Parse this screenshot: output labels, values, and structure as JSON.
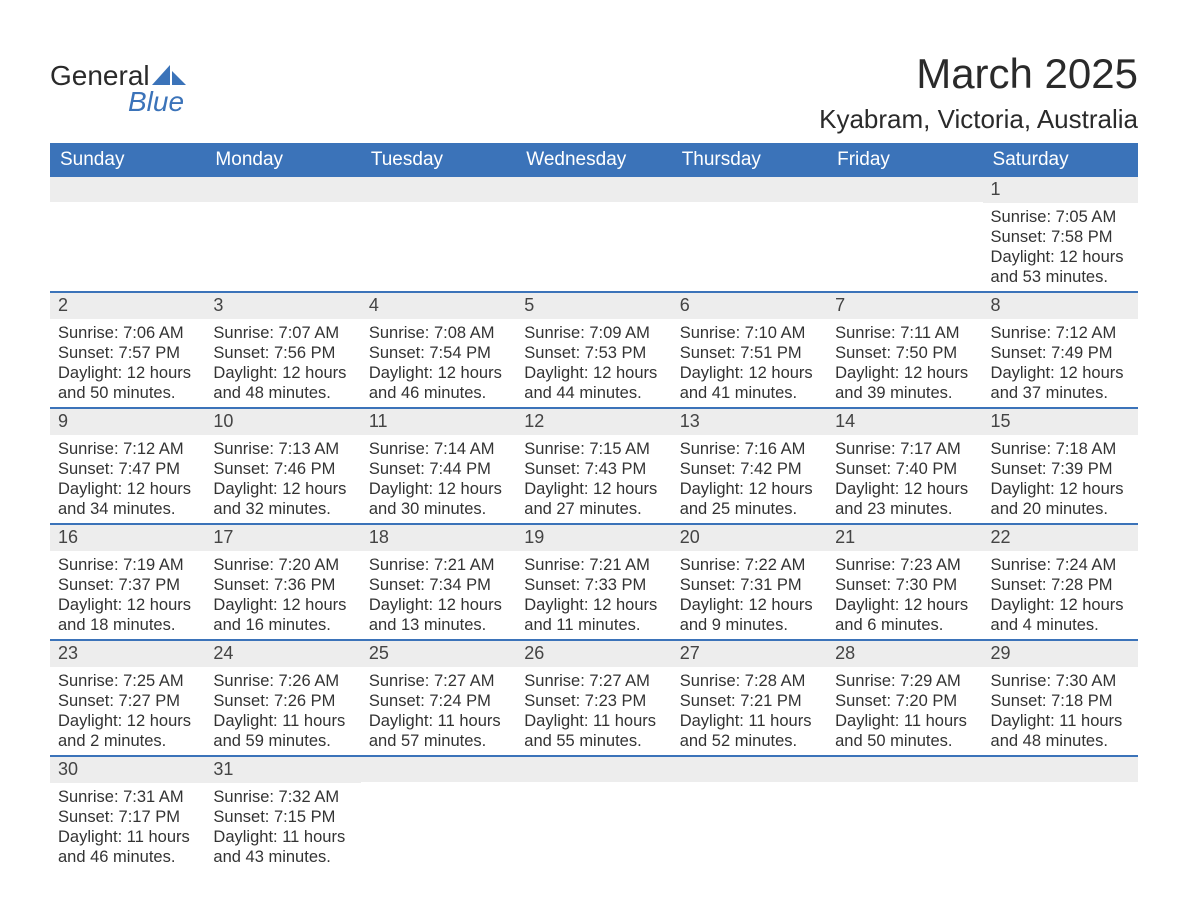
{
  "brand": {
    "name_part1": "General",
    "name_part2": "Blue",
    "color_primary": "#3b73b9",
    "color_text": "#2a2a2a"
  },
  "header": {
    "month_title": "March 2025",
    "location": "Kyabram, Victoria, Australia"
  },
  "calendar": {
    "type": "table",
    "background_color": "#ffffff",
    "header_bg": "#3b73b9",
    "header_text_color": "#ffffff",
    "row_divider_color": "#3b73b9",
    "daynum_bg": "#ededed",
    "text_color": "#333333",
    "body_fontsize": 16.5,
    "header_fontsize": 19,
    "title_fontsize": 42,
    "location_fontsize": 26,
    "columns": [
      "Sunday",
      "Monday",
      "Tuesday",
      "Wednesday",
      "Thursday",
      "Friday",
      "Saturday"
    ],
    "weeks": [
      [
        {
          "day": "",
          "sunrise": "",
          "sunset": "",
          "daylight": ""
        },
        {
          "day": "",
          "sunrise": "",
          "sunset": "",
          "daylight": ""
        },
        {
          "day": "",
          "sunrise": "",
          "sunset": "",
          "daylight": ""
        },
        {
          "day": "",
          "sunrise": "",
          "sunset": "",
          "daylight": ""
        },
        {
          "day": "",
          "sunrise": "",
          "sunset": "",
          "daylight": ""
        },
        {
          "day": "",
          "sunrise": "",
          "sunset": "",
          "daylight": ""
        },
        {
          "day": "1",
          "sunrise": "Sunrise: 7:05 AM",
          "sunset": "Sunset: 7:58 PM",
          "daylight": "Daylight: 12 hours and 53 minutes."
        }
      ],
      [
        {
          "day": "2",
          "sunrise": "Sunrise: 7:06 AM",
          "sunset": "Sunset: 7:57 PM",
          "daylight": "Daylight: 12 hours and 50 minutes."
        },
        {
          "day": "3",
          "sunrise": "Sunrise: 7:07 AM",
          "sunset": "Sunset: 7:56 PM",
          "daylight": "Daylight: 12 hours and 48 minutes."
        },
        {
          "day": "4",
          "sunrise": "Sunrise: 7:08 AM",
          "sunset": "Sunset: 7:54 PM",
          "daylight": "Daylight: 12 hours and 46 minutes."
        },
        {
          "day": "5",
          "sunrise": "Sunrise: 7:09 AM",
          "sunset": "Sunset: 7:53 PM",
          "daylight": "Daylight: 12 hours and 44 minutes."
        },
        {
          "day": "6",
          "sunrise": "Sunrise: 7:10 AM",
          "sunset": "Sunset: 7:51 PM",
          "daylight": "Daylight: 12 hours and 41 minutes."
        },
        {
          "day": "7",
          "sunrise": "Sunrise: 7:11 AM",
          "sunset": "Sunset: 7:50 PM",
          "daylight": "Daylight: 12 hours and 39 minutes."
        },
        {
          "day": "8",
          "sunrise": "Sunrise: 7:12 AM",
          "sunset": "Sunset: 7:49 PM",
          "daylight": "Daylight: 12 hours and 37 minutes."
        }
      ],
      [
        {
          "day": "9",
          "sunrise": "Sunrise: 7:12 AM",
          "sunset": "Sunset: 7:47 PM",
          "daylight": "Daylight: 12 hours and 34 minutes."
        },
        {
          "day": "10",
          "sunrise": "Sunrise: 7:13 AM",
          "sunset": "Sunset: 7:46 PM",
          "daylight": "Daylight: 12 hours and 32 minutes."
        },
        {
          "day": "11",
          "sunrise": "Sunrise: 7:14 AM",
          "sunset": "Sunset: 7:44 PM",
          "daylight": "Daylight: 12 hours and 30 minutes."
        },
        {
          "day": "12",
          "sunrise": "Sunrise: 7:15 AM",
          "sunset": "Sunset: 7:43 PM",
          "daylight": "Daylight: 12 hours and 27 minutes."
        },
        {
          "day": "13",
          "sunrise": "Sunrise: 7:16 AM",
          "sunset": "Sunset: 7:42 PM",
          "daylight": "Daylight: 12 hours and 25 minutes."
        },
        {
          "day": "14",
          "sunrise": "Sunrise: 7:17 AM",
          "sunset": "Sunset: 7:40 PM",
          "daylight": "Daylight: 12 hours and 23 minutes."
        },
        {
          "day": "15",
          "sunrise": "Sunrise: 7:18 AM",
          "sunset": "Sunset: 7:39 PM",
          "daylight": "Daylight: 12 hours and 20 minutes."
        }
      ],
      [
        {
          "day": "16",
          "sunrise": "Sunrise: 7:19 AM",
          "sunset": "Sunset: 7:37 PM",
          "daylight": "Daylight: 12 hours and 18 minutes."
        },
        {
          "day": "17",
          "sunrise": "Sunrise: 7:20 AM",
          "sunset": "Sunset: 7:36 PM",
          "daylight": "Daylight: 12 hours and 16 minutes."
        },
        {
          "day": "18",
          "sunrise": "Sunrise: 7:21 AM",
          "sunset": "Sunset: 7:34 PM",
          "daylight": "Daylight: 12 hours and 13 minutes."
        },
        {
          "day": "19",
          "sunrise": "Sunrise: 7:21 AM",
          "sunset": "Sunset: 7:33 PM",
          "daylight": "Daylight: 12 hours and 11 minutes."
        },
        {
          "day": "20",
          "sunrise": "Sunrise: 7:22 AM",
          "sunset": "Sunset: 7:31 PM",
          "daylight": "Daylight: 12 hours and 9 minutes."
        },
        {
          "day": "21",
          "sunrise": "Sunrise: 7:23 AM",
          "sunset": "Sunset: 7:30 PM",
          "daylight": "Daylight: 12 hours and 6 minutes."
        },
        {
          "day": "22",
          "sunrise": "Sunrise: 7:24 AM",
          "sunset": "Sunset: 7:28 PM",
          "daylight": "Daylight: 12 hours and 4 minutes."
        }
      ],
      [
        {
          "day": "23",
          "sunrise": "Sunrise: 7:25 AM",
          "sunset": "Sunset: 7:27 PM",
          "daylight": "Daylight: 12 hours and 2 minutes."
        },
        {
          "day": "24",
          "sunrise": "Sunrise: 7:26 AM",
          "sunset": "Sunset: 7:26 PM",
          "daylight": "Daylight: 11 hours and 59 minutes."
        },
        {
          "day": "25",
          "sunrise": "Sunrise: 7:27 AM",
          "sunset": "Sunset: 7:24 PM",
          "daylight": "Daylight: 11 hours and 57 minutes."
        },
        {
          "day": "26",
          "sunrise": "Sunrise: 7:27 AM",
          "sunset": "Sunset: 7:23 PM",
          "daylight": "Daylight: 11 hours and 55 minutes."
        },
        {
          "day": "27",
          "sunrise": "Sunrise: 7:28 AM",
          "sunset": "Sunset: 7:21 PM",
          "daylight": "Daylight: 11 hours and 52 minutes."
        },
        {
          "day": "28",
          "sunrise": "Sunrise: 7:29 AM",
          "sunset": "Sunset: 7:20 PM",
          "daylight": "Daylight: 11 hours and 50 minutes."
        },
        {
          "day": "29",
          "sunrise": "Sunrise: 7:30 AM",
          "sunset": "Sunset: 7:18 PM",
          "daylight": "Daylight: 11 hours and 48 minutes."
        }
      ],
      [
        {
          "day": "30",
          "sunrise": "Sunrise: 7:31 AM",
          "sunset": "Sunset: 7:17 PM",
          "daylight": "Daylight: 11 hours and 46 minutes."
        },
        {
          "day": "31",
          "sunrise": "Sunrise: 7:32 AM",
          "sunset": "Sunset: 7:15 PM",
          "daylight": "Daylight: 11 hours and 43 minutes."
        },
        {
          "day": "",
          "sunrise": "",
          "sunset": "",
          "daylight": ""
        },
        {
          "day": "",
          "sunrise": "",
          "sunset": "",
          "daylight": ""
        },
        {
          "day": "",
          "sunrise": "",
          "sunset": "",
          "daylight": ""
        },
        {
          "day": "",
          "sunrise": "",
          "sunset": "",
          "daylight": ""
        },
        {
          "day": "",
          "sunrise": "",
          "sunset": "",
          "daylight": ""
        }
      ]
    ]
  }
}
